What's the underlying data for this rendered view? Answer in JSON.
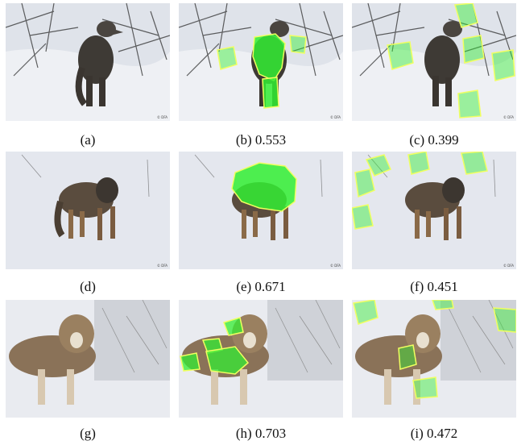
{
  "figure": {
    "rows": [
      {
        "panels": [
          {
            "caption": "(a)",
            "overlay": "none"
          },
          {
            "caption": "(b) 0.553",
            "overlay": "on-subject"
          },
          {
            "caption": "(c) 0.399",
            "overlay": "background"
          }
        ]
      },
      {
        "panels": [
          {
            "caption": "(d)",
            "overlay": "none"
          },
          {
            "caption": "(e) 0.671",
            "overlay": "on-subject"
          },
          {
            "caption": "(f) 0.451",
            "overlay": "background"
          }
        ]
      },
      {
        "panels": [
          {
            "caption": "(g)",
            "overlay": "none"
          },
          {
            "caption": "(h) 0.703",
            "overlay": "on-subject"
          },
          {
            "caption": "(i) 0.472",
            "overlay": "background"
          }
        ]
      }
    ],
    "colors": {
      "overlay_fill": "#33ee33",
      "overlay_outline": "#f0ff60",
      "snow": "#e6e9ef",
      "wolf_dark": "#3a3530",
      "wolf_tan": "#8a6a48"
    }
  }
}
